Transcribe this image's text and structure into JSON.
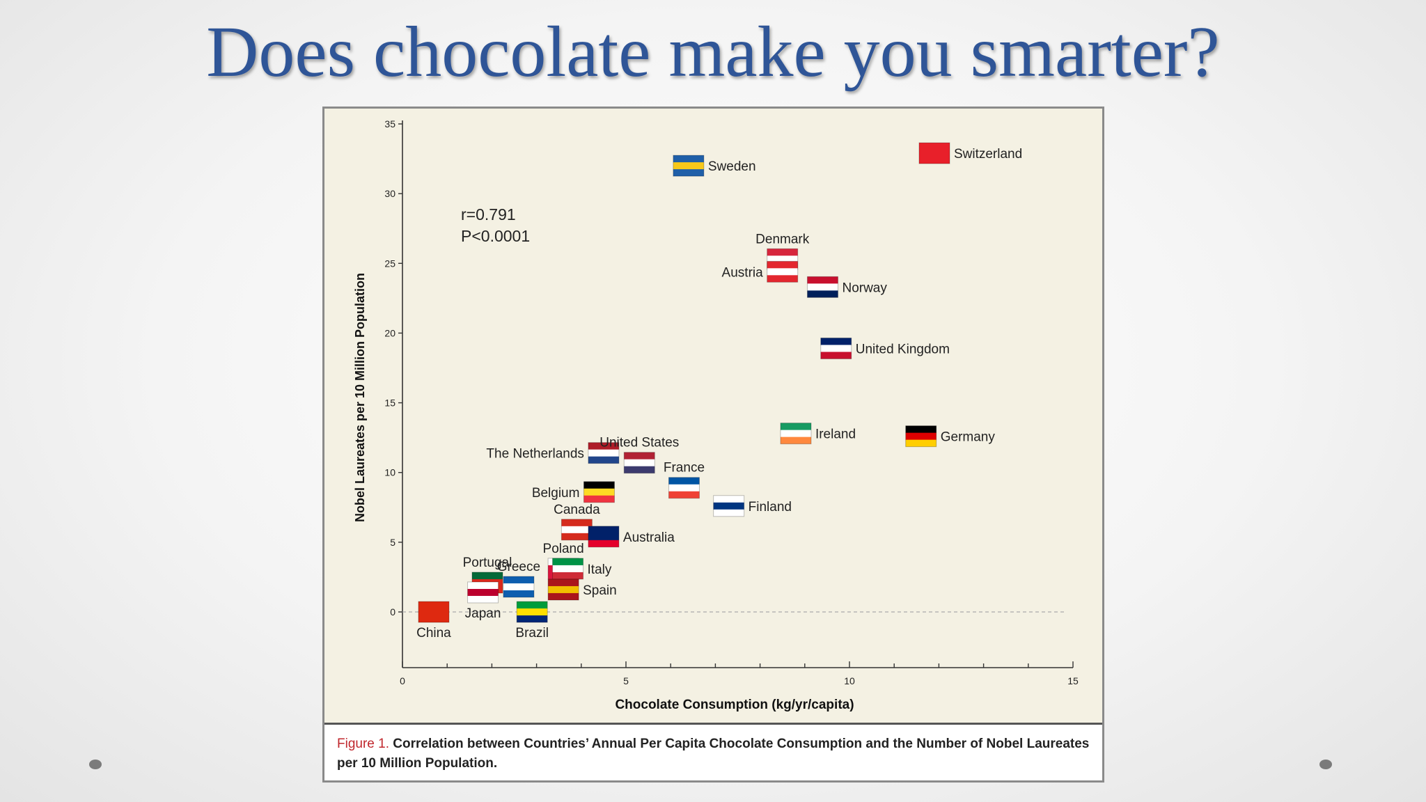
{
  "slide": {
    "title": "Does chocolate make you smarter?"
  },
  "caption": {
    "figure_label": "Figure 1.",
    "text": "Correlation between Countries’ Annual Per Capita Chocolate Consumption and the Number of Nobel Laureates per 10 Million Population."
  },
  "chart_data": {
    "type": "scatter",
    "xlabel": "Chocolate Consumption (kg/yr/capita)",
    "ylabel": "Nobel Laureates per 10 Million Population",
    "xlim": [
      0,
      15
    ],
    "ylim": [
      0,
      35
    ],
    "xticks": [
      0,
      5,
      10,
      15
    ],
    "yticks": [
      0,
      5,
      10,
      15,
      20,
      25,
      30,
      35
    ],
    "grid": false,
    "annotations": [
      "r=0.791",
      "P<0.0001"
    ],
    "points": [
      {
        "label": "Switzerland",
        "x": 11.9,
        "y": 32.9,
        "flag": [
          "#e8202a",
          "#e8202a",
          "#e8202a"
        ]
      },
      {
        "label": "Sweden",
        "x": 6.4,
        "y": 32.0,
        "flag": [
          "#1f5fa8",
          "#f7c81a",
          "#1f5fa8"
        ]
      },
      {
        "label": "Denmark",
        "x": 8.5,
        "y": 25.3,
        "flag": [
          "#d7263d",
          "#ffffff",
          "#d7263d"
        ]
      },
      {
        "label": "Austria",
        "x": 8.5,
        "y": 24.4,
        "flag": [
          "#e3272f",
          "#ffffff",
          "#e3272f"
        ]
      },
      {
        "label": "Norway",
        "x": 9.4,
        "y": 23.3,
        "flag": [
          "#c8102e",
          "#ffffff",
          "#00205b"
        ]
      },
      {
        "label": "United Kingdom",
        "x": 9.7,
        "y": 18.9,
        "flag": [
          "#012169",
          "#ffffff",
          "#c8102e"
        ]
      },
      {
        "label": "Ireland",
        "x": 8.8,
        "y": 12.8,
        "flag": [
          "#169b62",
          "#ffffff",
          "#ff883e"
        ]
      },
      {
        "label": "Germany",
        "x": 11.6,
        "y": 12.6,
        "flag": [
          "#000000",
          "#dd0000",
          "#ffce00"
        ]
      },
      {
        "label": "The Netherlands",
        "x": 4.5,
        "y": 11.4,
        "flag": [
          "#ae1c28",
          "#ffffff",
          "#21468b"
        ]
      },
      {
        "label": "United States",
        "x": 5.3,
        "y": 10.7,
        "flag": [
          "#b22234",
          "#ffffff",
          "#3c3b6e"
        ]
      },
      {
        "label": "France",
        "x": 6.3,
        "y": 8.9,
        "flag": [
          "#0055a4",
          "#ffffff",
          "#ef4135"
        ]
      },
      {
        "label": "Belgium",
        "x": 4.4,
        "y": 8.6,
        "flag": [
          "#000000",
          "#fdda24",
          "#ef3340"
        ]
      },
      {
        "label": "Finland",
        "x": 7.3,
        "y": 7.6,
        "flag": [
          "#ffffff",
          "#003580",
          "#ffffff"
        ]
      },
      {
        "label": "Canada",
        "x": 3.9,
        "y": 5.9,
        "flag": [
          "#d52b1e",
          "#ffffff",
          "#d52b1e"
        ]
      },
      {
        "label": "Australia",
        "x": 4.5,
        "y": 5.4,
        "flag": [
          "#012169",
          "#012169",
          "#e4002b"
        ]
      },
      {
        "label": "Poland",
        "x": 3.6,
        "y": 3.1,
        "flag": [
          "#ffffff",
          "#dc143c",
          "#dc143c"
        ]
      },
      {
        "label": "Italy",
        "x": 3.7,
        "y": 3.1,
        "flag": [
          "#009246",
          "#ffffff",
          "#ce2b37"
        ]
      },
      {
        "label": "Portugal",
        "x": 1.9,
        "y": 2.1,
        "flag": [
          "#046a38",
          "#da291c",
          "#da291c"
        ]
      },
      {
        "label": "Greece",
        "x": 2.6,
        "y": 1.8,
        "flag": [
          "#0d5eaf",
          "#ffffff",
          "#0d5eaf"
        ]
      },
      {
        "label": "Japan",
        "x": 1.8,
        "y": 1.4,
        "flag": [
          "#ffffff",
          "#bc002d",
          "#ffffff"
        ]
      },
      {
        "label": "Spain",
        "x": 3.6,
        "y": 1.6,
        "flag": [
          "#aa151b",
          "#f1bf00",
          "#aa151b"
        ]
      },
      {
        "label": "China",
        "x": 0.7,
        "y": 0.0,
        "flag": [
          "#de2910",
          "#de2910",
          "#de2910"
        ]
      },
      {
        "label": "Brazil",
        "x": 2.9,
        "y": 0.0,
        "flag": [
          "#009c3b",
          "#ffdf00",
          "#002776"
        ]
      }
    ]
  }
}
